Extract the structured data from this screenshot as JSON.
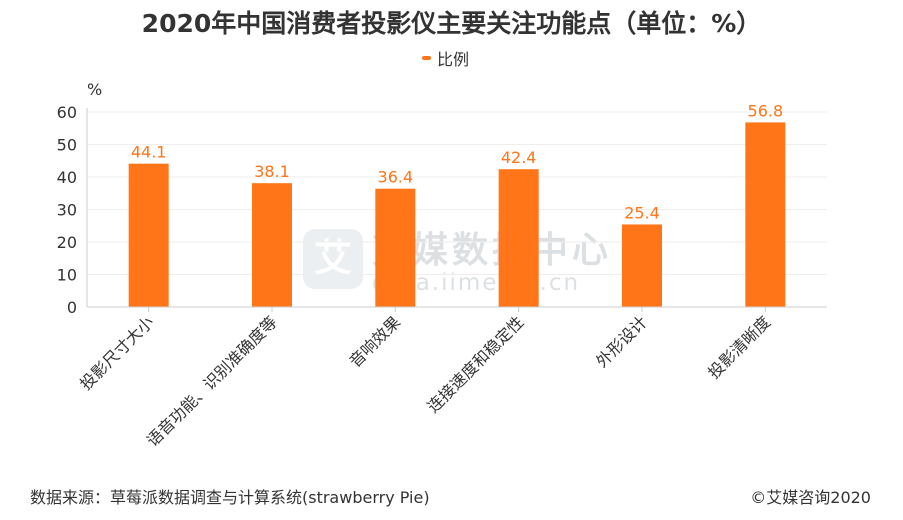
{
  "title": "2020年中国消费者投影仪主要关注功能点（单位：%）",
  "legend_label": "比例",
  "y_unit": "%",
  "watermark": {
    "logo_text": "艾",
    "name": "艾媒数据中心",
    "url": "data.iimedia.cn"
  },
  "footer": {
    "source": "数据来源：草莓派数据调查与计算系统(strawberry Pie)",
    "copyright": "©艾媒咨询2020"
  },
  "colors": {
    "bar": "#FF7518",
    "label": "#FF7518",
    "axis": "#CCCCCC",
    "grid": "#EEEEEE"
  },
  "chart_data": {
    "type": "bar",
    "title": "2020年中国消费者投影仪主要关注功能点（单位：%）",
    "categories": [
      "投影尺寸大小",
      "语音功能、识别准确度等",
      "音响效果",
      "连接速度和稳定性",
      "外形设计",
      "投影清晰度"
    ],
    "series": [
      {
        "name": "比例",
        "values": [
          44.1,
          38.1,
          36.4,
          42.4,
          25.4,
          56.8
        ]
      }
    ],
    "ylabel": "%",
    "ylim": [
      0,
      60
    ],
    "yticks": [
      0,
      10,
      20,
      30,
      40,
      50,
      60
    ],
    "grid": true,
    "legend_position": "top-center"
  }
}
